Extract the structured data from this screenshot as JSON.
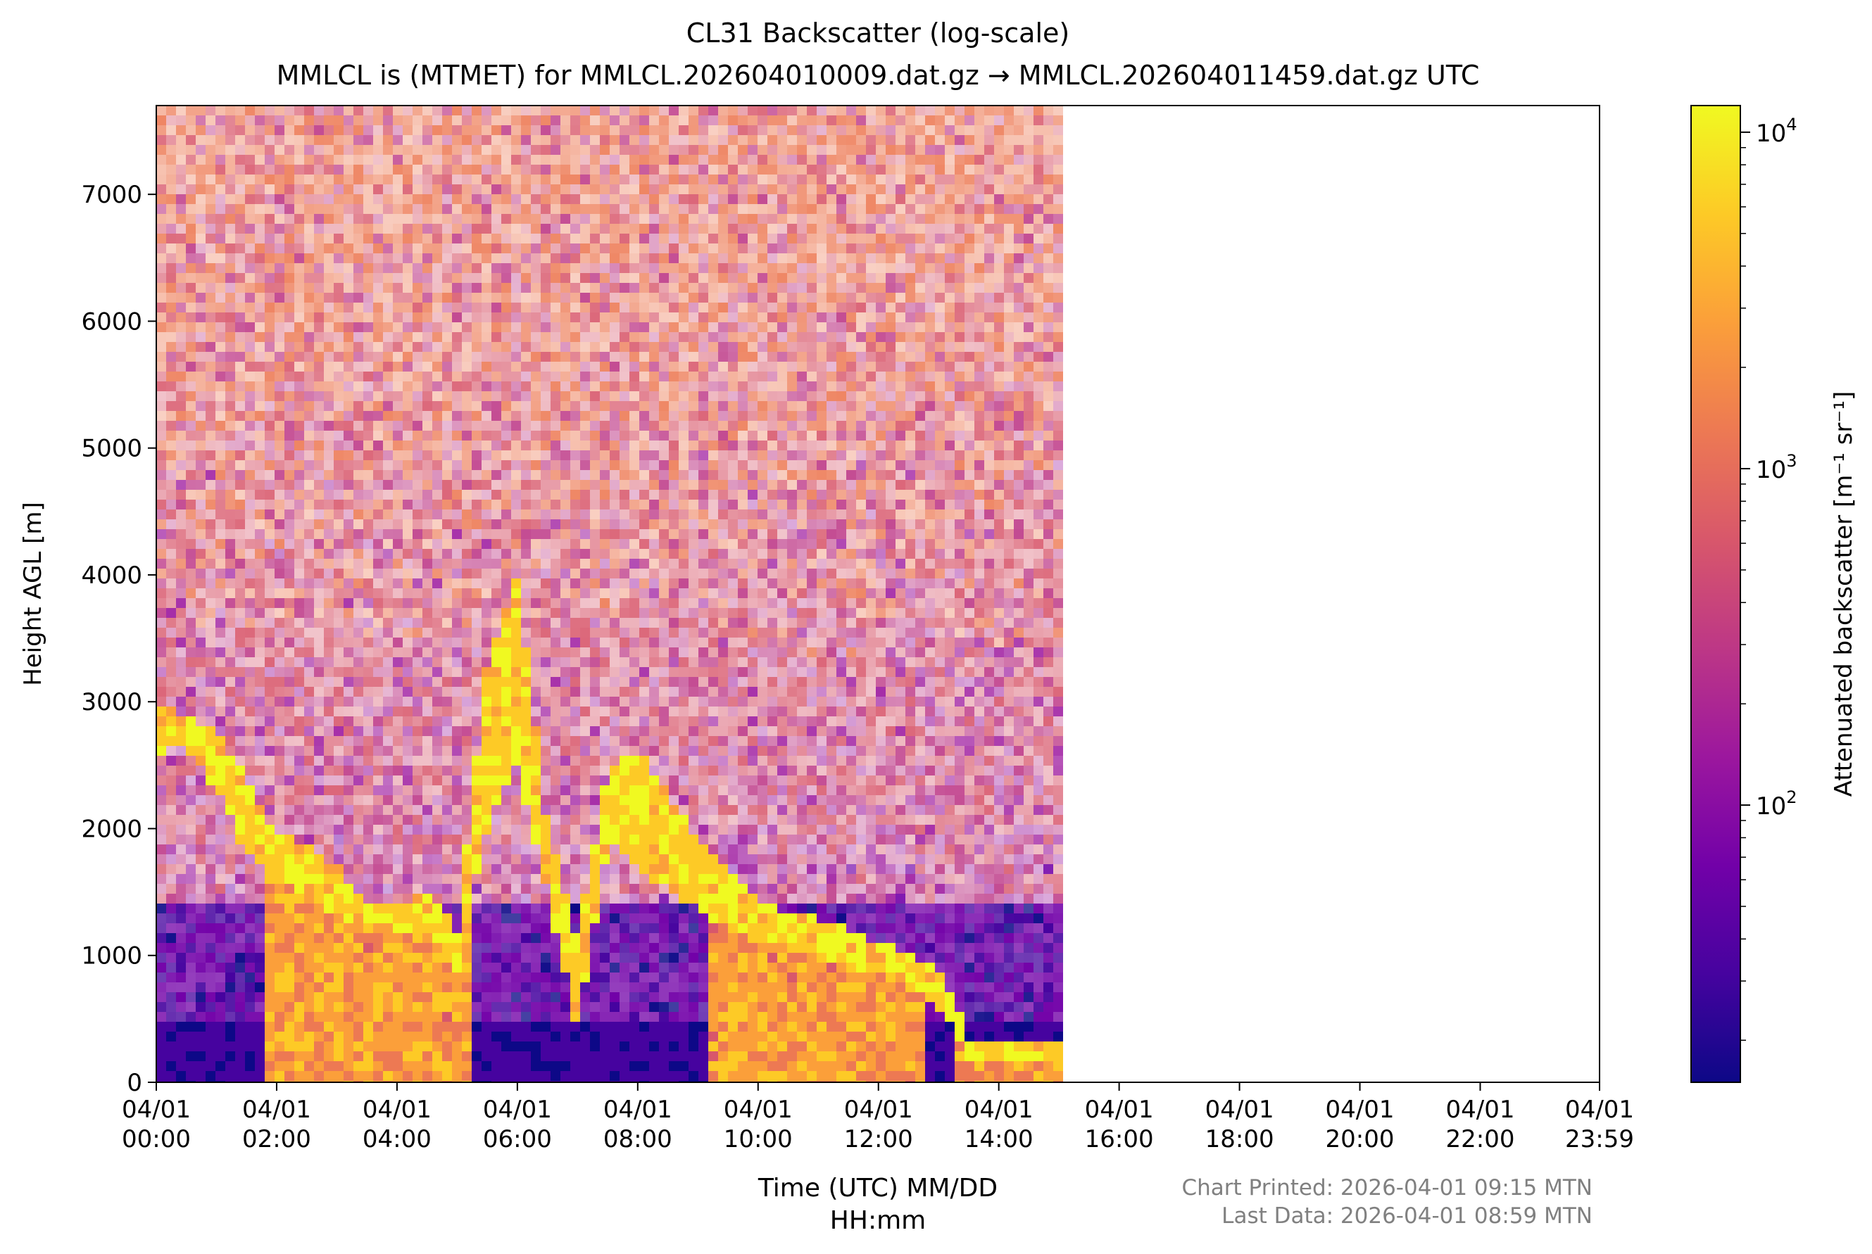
{
  "chart_data": {
    "type": "heatmap",
    "title": "CL31 Backscatter (log-scale)",
    "subtitle": "MMLCL is (MTMET) for MMLCL.202604010009.dat.gz → MMLCL.202604011459.dat.gz UTC",
    "xlabel_line1": "Time (UTC) MM/DD",
    "xlabel_line2": "HH:mm",
    "ylabel": "Height AGL [m]",
    "colorbar_label": "Attenuated backscatter [m⁻¹ sr⁻¹]",
    "x_range_hours": [
      0,
      23.983
    ],
    "x_ticks": [
      {
        "hour": 0,
        "date": "04/01",
        "time": "00:00"
      },
      {
        "hour": 2,
        "date": "04/01",
        "time": "02:00"
      },
      {
        "hour": 4,
        "date": "04/01",
        "time": "04:00"
      },
      {
        "hour": 6,
        "date": "04/01",
        "time": "06:00"
      },
      {
        "hour": 8,
        "date": "04/01",
        "time": "08:00"
      },
      {
        "hour": 10,
        "date": "04/01",
        "time": "10:00"
      },
      {
        "hour": 12,
        "date": "04/01",
        "time": "12:00"
      },
      {
        "hour": 14,
        "date": "04/01",
        "time": "14:00"
      },
      {
        "hour": 16,
        "date": "04/01",
        "time": "16:00"
      },
      {
        "hour": 18,
        "date": "04/01",
        "time": "18:00"
      },
      {
        "hour": 20,
        "date": "04/01",
        "time": "20:00"
      },
      {
        "hour": 22,
        "date": "04/01",
        "time": "22:00"
      },
      {
        "hour": 23.983,
        "date": "04/01",
        "time": "23:59"
      }
    ],
    "ylim": [
      0,
      7700
    ],
    "y_ticks": [
      0,
      1000,
      2000,
      3000,
      4000,
      5000,
      6000,
      7000
    ],
    "y_tick_labels": [
      "0",
      "1000",
      "2000",
      "3000",
      "4000",
      "5000",
      "6000",
      "7000"
    ],
    "color_scale": "log",
    "color_range": [
      15,
      12000
    ],
    "colorbar_ticks": [
      {
        "value": 100,
        "base": "10",
        "exp": "2"
      },
      {
        "value": 1000,
        "base": "10",
        "exp": "3"
      },
      {
        "value": 10000,
        "base": "10",
        "exp": "4"
      }
    ],
    "colormap": [
      "#0d0887",
      "#46039f",
      "#7201a8",
      "#9c179e",
      "#bd3786",
      "#d8576b",
      "#ed7953",
      "#fb9f3a",
      "#fdca26",
      "#f0f921"
    ],
    "data_end_hour": 14.983,
    "cloud_layer": [
      {
        "hour": 0.0,
        "base": 2600,
        "top": 2950,
        "fill_below": false
      },
      {
        "hour": 0.5,
        "base": 2650,
        "top": 2900,
        "fill_below": false
      },
      {
        "hour": 1.0,
        "base": 2300,
        "top": 2750,
        "fill_below": false
      },
      {
        "hour": 1.5,
        "base": 1800,
        "top": 2400,
        "fill_below": false
      },
      {
        "hour": 2.0,
        "base": 1600,
        "top": 1950,
        "fill_below": true
      },
      {
        "hour": 2.5,
        "base": 1500,
        "top": 1900,
        "fill_below": true
      },
      {
        "hour": 3.0,
        "base": 1300,
        "top": 1700,
        "fill_below": true
      },
      {
        "hour": 3.5,
        "base": 1250,
        "top": 1450,
        "fill_below": true
      },
      {
        "hour": 4.0,
        "base": 1200,
        "top": 1400,
        "fill_below": true
      },
      {
        "hour": 4.5,
        "base": 1150,
        "top": 1500,
        "fill_below": true
      },
      {
        "hour": 5.0,
        "base": 900,
        "top": 1200,
        "fill_below": true
      },
      {
        "hour": 5.5,
        "base": 2000,
        "top": 3300,
        "fill_below": false
      },
      {
        "hour": 6.0,
        "base": 2500,
        "top": 4000,
        "fill_below": false
      },
      {
        "hour": 6.5,
        "base": 1500,
        "top": 2000,
        "fill_below": false
      },
      {
        "hour": 7.0,
        "base": 400,
        "top": 1100,
        "fill_below": false
      },
      {
        "hour": 7.5,
        "base": 1900,
        "top": 2500,
        "fill_below": false
      },
      {
        "hour": 8.0,
        "base": 1700,
        "top": 2600,
        "fill_below": false
      },
      {
        "hour": 8.5,
        "base": 1500,
        "top": 2300,
        "fill_below": false
      },
      {
        "hour": 9.0,
        "base": 1350,
        "top": 1900,
        "fill_below": false
      },
      {
        "hour": 9.5,
        "base": 1200,
        "top": 1650,
        "fill_below": true
      },
      {
        "hour": 10.0,
        "base": 1100,
        "top": 1450,
        "fill_below": true
      },
      {
        "hour": 10.5,
        "base": 1050,
        "top": 1350,
        "fill_below": true
      },
      {
        "hour": 11.0,
        "base": 1000,
        "top": 1300,
        "fill_below": true
      },
      {
        "hour": 11.5,
        "base": 900,
        "top": 1200,
        "fill_below": true
      },
      {
        "hour": 12.0,
        "base": 850,
        "top": 1100,
        "fill_below": true
      },
      {
        "hour": 12.5,
        "base": 750,
        "top": 1000,
        "fill_below": true
      },
      {
        "hour": 13.0,
        "base": 600,
        "top": 900,
        "fill_below": false
      },
      {
        "hour": 13.5,
        "base": 200,
        "top": 350,
        "fill_below": true
      },
      {
        "hour": 14.0,
        "base": 150,
        "top": 300,
        "fill_below": true
      },
      {
        "hour": 14.5,
        "base": 150,
        "top": 300,
        "fill_below": true
      },
      {
        "hour": 14.98,
        "base": 150,
        "top": 300,
        "fill_below": true
      }
    ]
  },
  "footer": {
    "printed": "Chart Printed: 2026-04-01 09:15 MTN",
    "last_data": "Last Data: 2026-04-01 08:59 MTN"
  }
}
